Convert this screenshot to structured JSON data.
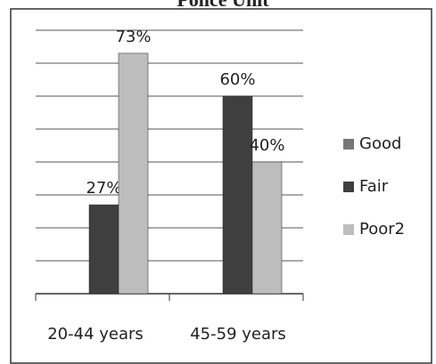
{
  "chart_data": {
    "type": "bar",
    "title": "Police Unit",
    "categories": [
      "20-44 years",
      "45-59 years"
    ],
    "series": [
      {
        "name": "Good",
        "color": "#777777",
        "values": [
          null,
          null
        ]
      },
      {
        "name": "Fair",
        "color": "#3f3f3f",
        "values": [
          27,
          60
        ],
        "value_labels": [
          "27%",
          "60%"
        ]
      },
      {
        "name": "Poor2",
        "color": "#bdbdbd",
        "values": [
          73,
          40
        ],
        "value_labels": [
          "73%",
          "40%"
        ]
      }
    ],
    "ylim": [
      0,
      80
    ],
    "yticks": [
      0,
      10,
      20,
      30,
      40,
      50,
      60,
      70,
      80
    ],
    "grid": true,
    "legend": "right"
  }
}
